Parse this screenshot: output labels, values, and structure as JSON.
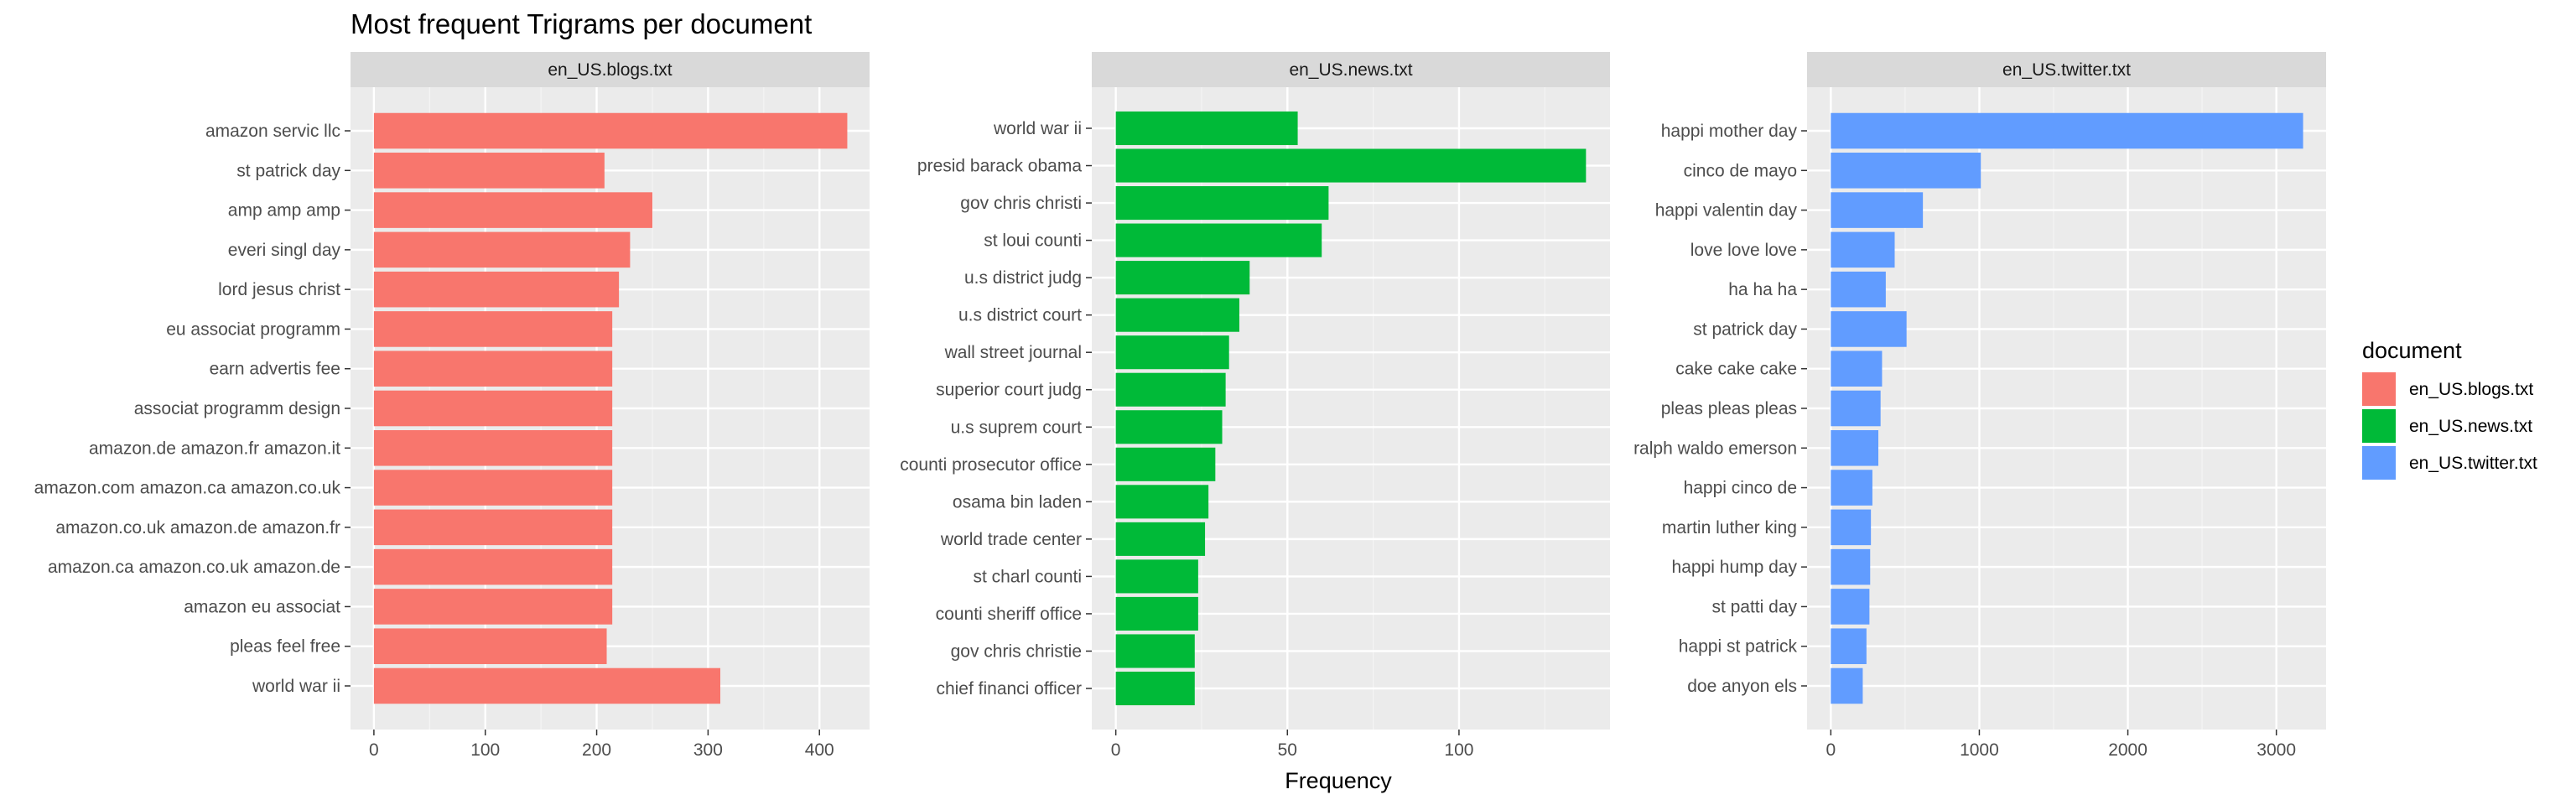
{
  "chart_data": {
    "type": "bar",
    "orientation": "horizontal",
    "title": "Most frequent Trigrams per document",
    "xlabel": "Frequency",
    "ylabel": "",
    "grid": true,
    "legend": {
      "title": "document",
      "position": "right",
      "entries": [
        {
          "label": "en_US.blogs.txt",
          "color": "#F8766D"
        },
        {
          "label": "en_US.news.txt",
          "color": "#00BA38"
        },
        {
          "label": "en_US.twitter.txt",
          "color": "#619CFF"
        }
      ]
    },
    "panels": [
      {
        "name": "en_US.blogs.txt",
        "color": "#F8766D",
        "xlim": [
          -21,
          445
        ],
        "ticks": [
          0,
          100,
          200,
          300,
          400
        ],
        "minor_ticks": [
          50,
          150,
          250,
          350
        ],
        "categories": [
          "amazon servic llc",
          "st patrick day",
          "amp amp amp",
          "everi singl day",
          "lord jesus christ",
          "eu associat programm",
          "earn advertis fee",
          "associat programm design",
          "amazon.de amazon.fr amazon.it",
          "amazon.com amazon.ca amazon.co.uk",
          "amazon.co.uk amazon.de amazon.fr",
          "amazon.ca amazon.co.uk amazon.de",
          "amazon eu associat",
          "pleas feel free",
          "world war ii"
        ],
        "values": [
          425,
          207,
          250,
          230,
          220,
          214,
          214,
          214,
          214,
          214,
          214,
          214,
          214,
          209,
          311
        ]
      },
      {
        "name": "en_US.news.txt",
        "color": "#00BA38",
        "xlim": [
          -7,
          144
        ],
        "ticks": [
          0,
          50,
          100
        ],
        "minor_ticks": [
          25,
          75,
          125
        ],
        "categories": [
          "world war ii",
          "presid barack obama",
          "gov chris christi",
          "st loui counti",
          "u.s district judg",
          "u.s district court",
          "wall street journal",
          "superior court judg",
          "u.s suprem court",
          "counti prosecutor office",
          "osama bin laden",
          "world trade center",
          "st charl counti",
          "counti sheriff office",
          "gov chris christie",
          "chief financi officer"
        ],
        "values": [
          53,
          137,
          62,
          60,
          39,
          36,
          33,
          32,
          31,
          29,
          27,
          26,
          24,
          24,
          23,
          23
        ]
      },
      {
        "name": "en_US.twitter.txt",
        "color": "#619CFF",
        "xlim": [
          -160,
          3335
        ],
        "ticks": [
          0,
          1000,
          2000,
          3000
        ],
        "minor_ticks": [
          500,
          1500,
          2500
        ],
        "categories": [
          "happi mother day",
          "cinco de mayo",
          "happi valentin day",
          "love love love",
          "ha ha ha",
          "st patrick day",
          "cake cake cake",
          "pleas pleas pleas",
          "ralph waldo emerson",
          "happi cinco de",
          "martin luther king",
          "happi hump day",
          "st patti day",
          "happi st patrick",
          "doe anyon els"
        ],
        "values": [
          3180,
          1010,
          620,
          430,
          370,
          510,
          345,
          335,
          320,
          280,
          270,
          265,
          260,
          240,
          215
        ]
      }
    ]
  }
}
